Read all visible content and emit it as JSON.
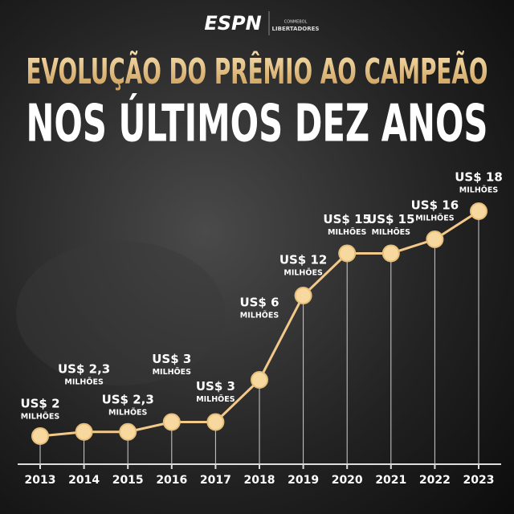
{
  "logos": {
    "espn": "ESPN",
    "conmebol_small": "CONMEBOL",
    "conmebol": "LIBERTADORES"
  },
  "chart_data": {
    "type": "line",
    "title": "EVOLUÇÃO DO PRÊMIO AO CAMPEÃO",
    "subtitle": "NOS ÚLTIMOS DEZ ANOS",
    "categories": [
      "2013",
      "2014",
      "2015",
      "2016",
      "2017",
      "2018",
      "2019",
      "2020",
      "2021",
      "2022",
      "2023"
    ],
    "values": [
      2,
      2.3,
      2.3,
      3,
      3,
      6,
      12,
      15,
      15,
      16,
      18
    ],
    "value_labels": [
      "US$ 2",
      "US$ 2,3",
      "US$ 2,3",
      "US$ 3",
      "US$ 3",
      "US$ 6",
      "US$ 12",
      "US$ 15",
      "US$ 15",
      "US$ 16",
      "US$ 18"
    ],
    "unit_label": "MILHÕES",
    "color": "#f2c98a",
    "ylim": [
      0,
      20
    ]
  }
}
